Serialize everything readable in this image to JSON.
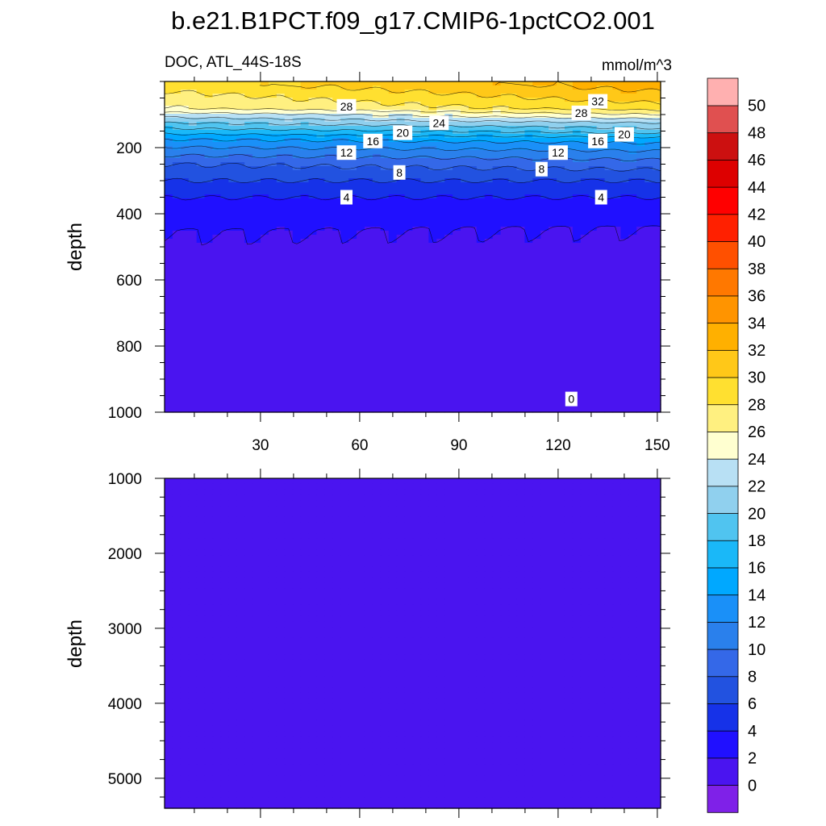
{
  "title": "b.e21.B1PCT.f09_g17.CMIP6-1pctCO2.001",
  "panel_top": {
    "left_text": "DOC, ATL_44S-18S",
    "right_text": "mmol/m^3",
    "ylabel": "depth"
  },
  "panel_bottom": {
    "ylabel": "depth"
  },
  "colorbar": {
    "levels": [
      "0",
      "2",
      "4",
      "6",
      "8",
      "10",
      "12",
      "14",
      "16",
      "18",
      "20",
      "22",
      "24",
      "26",
      "28",
      "30",
      "32",
      "34",
      "36",
      "38",
      "40",
      "42",
      "44",
      "46",
      "48",
      "50"
    ],
    "colors": [
      "#7f21e8",
      "#4a14f0",
      "#2010ff",
      "#1632e8",
      "#2252e0",
      "#3468e8",
      "#2a80ec",
      "#1a90f8",
      "#00a8ff",
      "#1ab8f8",
      "#50c4f0",
      "#90d0ee",
      "#b8e0f4",
      "#ffffd0",
      "#fff080",
      "#ffe030",
      "#ffc818",
      "#ffb000",
      "#ff9400",
      "#ff7800",
      "#ff5000",
      "#ff2000",
      "#ff0000",
      "#dd0000",
      "#cc1010",
      "#e05050",
      "#ffb0b0"
    ]
  },
  "contour_labels": [
    {
      "text": "28",
      "x": 56,
      "depth": 75
    },
    {
      "text": "24",
      "x": 84,
      "depth": 125
    },
    {
      "text": "20",
      "x": 73,
      "depth": 155
    },
    {
      "text": "16",
      "x": 64,
      "depth": 180
    },
    {
      "text": "12",
      "x": 56,
      "depth": 215
    },
    {
      "text": "8",
      "x": 72,
      "depth": 275
    },
    {
      "text": "4",
      "x": 56,
      "depth": 350
    },
    {
      "text": "32",
      "x": 132,
      "depth": 60
    },
    {
      "text": "28",
      "x": 127,
      "depth": 95
    },
    {
      "text": "20",
      "x": 140,
      "depth": 160
    },
    {
      "text": "16",
      "x": 132,
      "depth": 180
    },
    {
      "text": "12",
      "x": 120,
      "depth": 215
    },
    {
      "text": "8",
      "x": 115,
      "depth": 265
    },
    {
      "text": "4",
      "x": 133,
      "depth": 350
    },
    {
      "text": "0",
      "x": 124,
      "depth": 960
    }
  ],
  "chart_data": {
    "type": "heatmap",
    "title": "b.e21.B1PCT.f09_g17.CMIP6-1pctCO2.001",
    "variable": "DOC, ATL_44S-18S",
    "units": "mmol/m^3",
    "x": {
      "ticks": [
        30,
        60,
        90,
        120,
        150
      ],
      "range": [
        1,
        151
      ]
    },
    "panels": [
      {
        "name": "upper",
        "ylabel": "depth",
        "ylim": [
          0,
          1000
        ],
        "yticks": [
          200,
          400,
          600,
          800,
          1000
        ],
        "inverted": true
      },
      {
        "name": "lower",
        "ylabel": "depth",
        "ylim": [
          1000,
          5400
        ],
        "yticks": [
          1000,
          2000,
          3000,
          4000,
          5000
        ],
        "inverted": true
      }
    ],
    "profile_start": [
      {
        "depth": 10,
        "value": 29
      },
      {
        "depth": 50,
        "value": 27
      },
      {
        "depth": 80,
        "value": 26
      },
      {
        "depth": 100,
        "value": 23
      },
      {
        "depth": 125,
        "value": 20
      },
      {
        "depth": 150,
        "value": 17
      },
      {
        "depth": 175,
        "value": 14
      },
      {
        "depth": 210,
        "value": 11
      },
      {
        "depth": 250,
        "value": 8
      },
      {
        "depth": 300,
        "value": 6
      },
      {
        "depth": 350,
        "value": 4
      },
      {
        "depth": 450,
        "value": 2
      },
      {
        "depth": 1000,
        "value": 1
      },
      {
        "depth": 1100,
        "value": 0.5
      },
      {
        "depth": 5400,
        "value": 0.5
      }
    ],
    "profile_end": [
      {
        "depth": 10,
        "value": 33
      },
      {
        "depth": 50,
        "value": 31
      },
      {
        "depth": 80,
        "value": 29
      },
      {
        "depth": 100,
        "value": 26
      },
      {
        "depth": 125,
        "value": 22
      },
      {
        "depth": 150,
        "value": 19
      },
      {
        "depth": 175,
        "value": 15
      },
      {
        "depth": 210,
        "value": 12
      },
      {
        "depth": 250,
        "value": 9
      },
      {
        "depth": 300,
        "value": 6
      },
      {
        "depth": 350,
        "value": 4
      },
      {
        "depth": 440,
        "value": 2
      },
      {
        "depth": 930,
        "value": 1
      },
      {
        "depth": 1000,
        "value": 0.5
      },
      {
        "depth": 5400,
        "value": 0.5
      }
    ],
    "grid": false
  }
}
